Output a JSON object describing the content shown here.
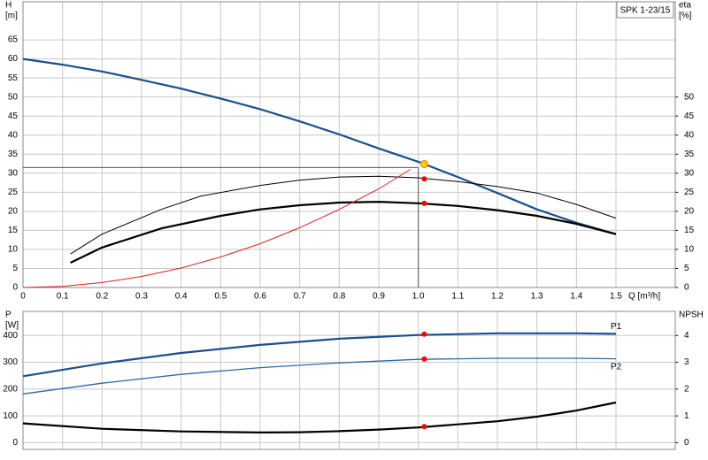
{
  "chart_data": [
    {
      "type": "line",
      "title": "SPK 1-23/15",
      "ylabel": "H",
      "yunit": "[m]",
      "y2label": "eta",
      "y2unit": "[%]",
      "xlabel": "Q [m³/h]",
      "xlim": [
        0,
        1.65
      ],
      "ylim": [
        0,
        75
      ],
      "y2lim": [
        0,
        75
      ],
      "xticks": [
        0,
        0.1,
        0.2,
        0.3,
        0.4,
        0.5,
        0.6,
        0.7,
        0.8,
        0.9,
        {
          "value": 1,
          "label": "1.0"
        },
        1.1,
        1.2,
        1.3,
        1.4,
        1.5
      ],
      "yticks": [
        0,
        5,
        10,
        15,
        20,
        25,
        30,
        35,
        40,
        45,
        50,
        55,
        60,
        65
      ],
      "y2ticks": [
        0,
        5,
        10,
        15,
        20,
        25,
        30,
        35,
        40,
        45,
        50
      ],
      "grid": true,
      "guide": {
        "x": 1.0,
        "y": 31.5
      },
      "series": [
        {
          "color": "#1c4f8c",
          "x": [
            0,
            0.1,
            0.2,
            0.3,
            0.4,
            0.5,
            0.6,
            0.7,
            0.8,
            0.9,
            1.0,
            1.1,
            1.2,
            1.3,
            1.4,
            1.5
          ],
          "values": [
            60,
            58.5,
            56.7,
            54.5,
            52.2,
            49.6,
            46.8,
            43.6,
            40.2,
            36.5,
            33,
            29,
            24.8,
            20.5,
            17,
            14
          ]
        },
        {
          "color": "#000000",
          "axis": "y2",
          "x": [
            0.12,
            0.2,
            0.35,
            0.45,
            0.6,
            0.7,
            0.8,
            0.9,
            1.0,
            1.1,
            1.2,
            1.3,
            1.4,
            1.5
          ],
          "values": [
            8.8,
            14,
            20.5,
            24,
            26.8,
            28.2,
            29,
            29.2,
            28.8,
            27.8,
            26.5,
            24.8,
            21.8,
            18.2
          ]
        },
        {
          "color": "#000000",
          "axis": "y2",
          "x": [
            0.12,
            0.2,
            0.35,
            0.5,
            0.6,
            0.7,
            0.8,
            0.9,
            1.0,
            1.1,
            1.2,
            1.3,
            1.4,
            1.5
          ],
          "values": [
            6.5,
            10.5,
            15.5,
            18.8,
            20.5,
            21.6,
            22.3,
            22.5,
            22.1,
            21.4,
            20.3,
            18.8,
            16.7,
            14
          ]
        },
        {
          "color": "#e02020",
          "x": [
            0,
            0.1,
            0.2,
            0.3,
            0.4,
            0.5,
            0.6,
            0.7,
            0.8,
            0.9,
            0.98
          ],
          "values": [
            0,
            0.3,
            1.3,
            2.9,
            5.1,
            8,
            11.5,
            15.7,
            20.5,
            25.9,
            31
          ]
        }
      ],
      "points": [
        {
          "x": 1.015,
          "y": 32.4,
          "color": "#ffcc00"
        },
        {
          "x": 1.015,
          "y": 28.5,
          "color": "#ff0000",
          "axis": "y2"
        },
        {
          "x": 1.015,
          "y": 22.1,
          "color": "#ff0000",
          "axis": "y2"
        }
      ]
    },
    {
      "type": "line",
      "ylabel": "P",
      "yunit": "[W]",
      "y2label": "NPSH",
      "xlim": [
        0,
        1.65
      ],
      "ylim": [
        -25,
        490
      ],
      "y2lim": [
        -0.25,
        4.9
      ],
      "xticks": [
        0,
        0.1,
        0.2,
        0.3,
        0.4,
        0.5,
        0.6,
        0.7,
        0.8,
        0.9,
        {
          "value": 1,
          "label": "1.0"
        },
        1.1,
        1.2,
        1.3,
        1.4,
        1.5
      ],
      "yticks": [
        0,
        100,
        200,
        300,
        400
      ],
      "y2ticks": [
        0,
        1,
        2,
        3,
        4
      ],
      "grid": true,
      "series": [
        {
          "name": "P1",
          "color": "#1c4f8c",
          "x": [
            0,
            0.2,
            0.4,
            0.6,
            0.8,
            1.0,
            1.2,
            1.4,
            1.5
          ],
          "values": [
            248,
            296,
            335,
            365,
            388,
            402,
            408,
            408,
            406
          ]
        },
        {
          "name": "P2",
          "color": "#2a6aa8",
          "x": [
            0,
            0.2,
            0.4,
            0.6,
            0.8,
            1.0,
            1.2,
            1.4,
            1.5
          ],
          "values": [
            182,
            222,
            255,
            280,
            298,
            311,
            315,
            315,
            313
          ]
        },
        {
          "color": "#000000",
          "axis": "y2",
          "x": [
            0,
            0.2,
            0.4,
            0.6,
            0.7,
            0.8,
            0.9,
            1.0,
            1.2,
            1.3,
            1.4,
            1.5
          ],
          "values": [
            0.72,
            0.52,
            0.42,
            0.38,
            0.39,
            0.43,
            0.49,
            0.57,
            0.8,
            0.97,
            1.2,
            1.5
          ]
        }
      ],
      "points": [
        {
          "x": 1.015,
          "y": 405,
          "color": "#ff0000"
        },
        {
          "x": 1.015,
          "y": 312,
          "color": "#ff0000"
        },
        {
          "x": 1.015,
          "y": 0.6,
          "color": "#ff0000",
          "axis": "y2"
        }
      ]
    }
  ]
}
